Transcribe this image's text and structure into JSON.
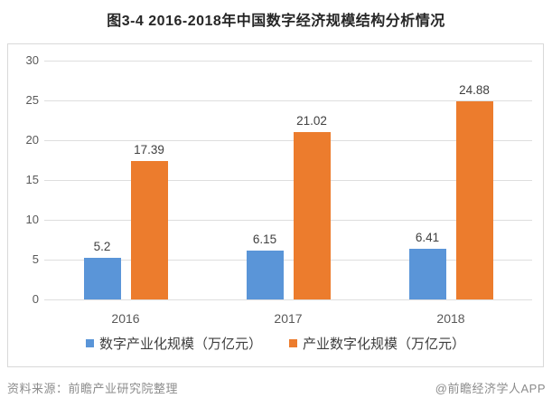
{
  "chart_data": {
    "type": "bar",
    "title": "图3-4 2016-2018年中国数字经济规模结构分析情况",
    "categories": [
      "2016",
      "2017",
      "2018"
    ],
    "series": [
      {
        "name": "数字产业化规模（万亿元）",
        "color": "#5a95d8",
        "values": [
          5.2,
          6.15,
          6.41
        ]
      },
      {
        "name": "产业数字化规模（万亿元）",
        "color": "#ec7c2d",
        "values": [
          17.39,
          21.02,
          24.88
        ]
      }
    ],
    "value_labels": [
      [
        "5.2",
        "6.15",
        "6.41"
      ],
      [
        "17.39",
        "21.02",
        "24.88"
      ]
    ],
    "xlabel": "",
    "ylabel": "",
    "ylim": [
      0,
      30
    ],
    "ytick_step": 5,
    "yticks": [
      "0",
      "5",
      "10",
      "15",
      "20",
      "25",
      "30"
    ],
    "grid": true,
    "legend_position": "bottom"
  },
  "footer": {
    "source": "资料来源：前瞻产业研究院整理",
    "credit": "@前瞻经济学人APP"
  },
  "colors": {
    "series_blue": "#5a95d8",
    "series_orange": "#ec7c2d",
    "gridline": "#dedede",
    "frame_border": "#d9d9d9",
    "axis_text": "#595959",
    "title_text": "#262626",
    "footer_text": "#8c8c8c"
  }
}
